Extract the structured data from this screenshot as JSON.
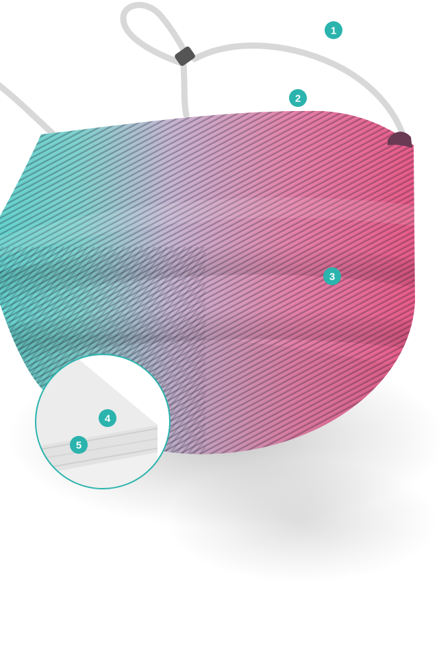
{
  "image": {
    "subject": "face-mask",
    "colors": {
      "background": "#ffffff",
      "fabric_left": "#58cfc9",
      "fabric_mid": "#c3b3cf",
      "fabric_right": "#e4507e",
      "strap": "#d8d8d8",
      "adjuster": "#555555",
      "badge": "#2bb3ad",
      "detail_ring": "#2bb3ad"
    }
  },
  "badges": [
    {
      "number": "1"
    },
    {
      "number": "2"
    },
    {
      "number": "3"
    },
    {
      "number": "4"
    },
    {
      "number": "5"
    }
  ]
}
